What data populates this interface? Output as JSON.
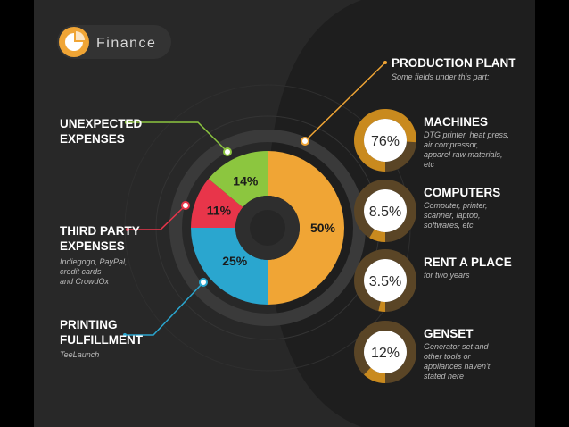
{
  "header": {
    "title": "Finance",
    "icon": "pie-chart-icon"
  },
  "colors": {
    "background": "#282828",
    "right_panel": "#1e1e1e",
    "green": "#8cc63f",
    "red": "#e8354a",
    "blue": "#2aa6cf",
    "orange": "#f0a535",
    "ring_track": "#5a4526",
    "ring_fill": "#c98a1e"
  },
  "left_labels": {
    "unexpected": {
      "line1": "UNEXPECTED",
      "line2": "EXPENSES"
    },
    "third_party": {
      "line1": "THIRD PARTY",
      "line2": "EXPENSES",
      "sub1": "Indiegogo, PayPal,",
      "sub2": "credit cards",
      "sub3": "and CrowdOx"
    },
    "printing": {
      "line1": "PRINTING",
      "line2": "FULFILLMENT",
      "sub1": "TeeLaunch"
    }
  },
  "production": {
    "title": "PRODUCTION PLANT",
    "subtitle": "Some fields under this part:"
  },
  "chart_data": {
    "type": "pie",
    "title": "",
    "categories": [
      "Production Plant",
      "Printing Fulfillment",
      "Third Party Expenses",
      "Unexpected Expenses"
    ],
    "values": [
      50,
      25,
      11,
      14
    ],
    "labels": [
      "50%",
      "25%",
      "11%",
      "14%"
    ]
  },
  "breakdown": [
    {
      "pct_label": "76%",
      "value": 76,
      "title": "MACHINES",
      "desc": [
        "DTG printer, heat press,",
        "air compressor,",
        "apparel raw materials,",
        "etc"
      ]
    },
    {
      "pct_label": "8.5%",
      "value": 8.5,
      "title": "COMPUTERS",
      "desc": [
        "Computer, printer,",
        "scanner, laptop,",
        "softwares, etc"
      ]
    },
    {
      "pct_label": "3.5%",
      "value": 3.5,
      "title": "RENT A PLACE",
      "desc": [
        "for two years"
      ]
    },
    {
      "pct_label": "12%",
      "value": 12,
      "title": "GENSET",
      "desc": [
        "Generator set and",
        "other tools or",
        "appliances haven't",
        "stated here"
      ]
    }
  ]
}
